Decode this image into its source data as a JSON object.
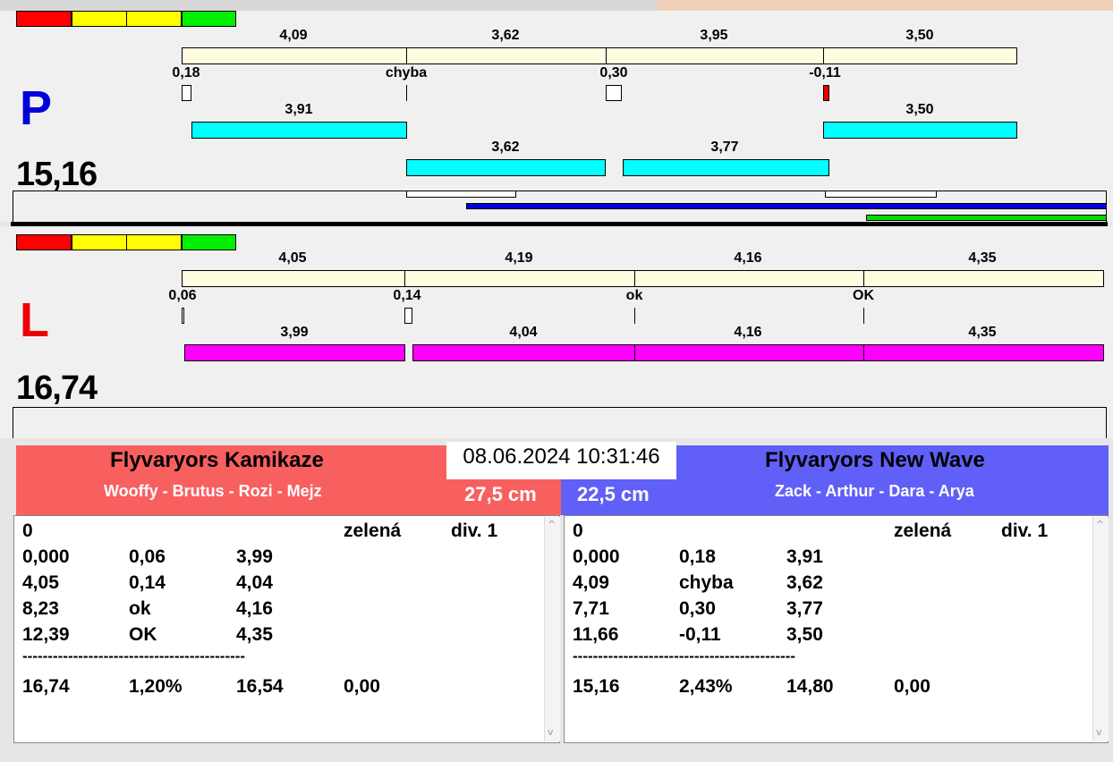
{
  "indicator_colors": [
    "#ff0000",
    "#ffff00",
    "#ffff00",
    "#00ee00"
  ],
  "lane_p": {
    "letter": "P",
    "letter_color": "#0000dd",
    "time": "15,16",
    "top_labels": [
      "4,09",
      "3,62",
      "3,95",
      "3,50"
    ],
    "mid_labels": [
      "0,18",
      "chyba",
      "0,30",
      "-0,11"
    ],
    "cyan_row1_labels": [
      "3,91",
      "3,50"
    ],
    "cyan_row2_labels": [
      "3,62",
      "3,77"
    ]
  },
  "lane_l": {
    "letter": "L",
    "letter_color": "#ee0000",
    "time": "16,74",
    "top_labels": [
      "4,05",
      "4,19",
      "4,16",
      "4,35"
    ],
    "mid_labels": [
      "0,06",
      "0,14",
      "ok",
      "OK"
    ],
    "mag_labels": [
      "3,99",
      "4,04",
      "4,16",
      "4,35"
    ]
  },
  "datetime": "08.06.2024 10:31:46",
  "left_team": {
    "name": "Flyvaryors Kamikaze",
    "members": "Wooffy - Brutus - Rozi - Mejz",
    "distance": "27,5 cm",
    "bg": "#f86060",
    "header": [
      "0",
      "zelená",
      "div. 1"
    ],
    "rows": [
      [
        "0,000",
        "0,06",
        "3,99"
      ],
      [
        "4,05",
        "0,14",
        "4,04"
      ],
      [
        "8,23",
        "ok",
        "4,16"
      ],
      [
        "12,39",
        "OK",
        "4,35"
      ]
    ],
    "separator": "--------------------------------------------",
    "totals": [
      "16,74",
      "1,20%",
      "16,54",
      "0,00"
    ]
  },
  "right_team": {
    "name": "Flyvaryors New Wave",
    "members": "Zack - Arthur - Dara - Arya",
    "distance": "22,5 cm",
    "bg": "#6060f8",
    "header": [
      "0",
      "zelená",
      "div. 1"
    ],
    "rows": [
      [
        "0,000",
        "0,18",
        "3,91"
      ],
      [
        "4,09",
        "chyba",
        "3,62"
      ],
      [
        "7,71",
        "0,30",
        "3,77"
      ],
      [
        "11,66",
        "-0,11",
        "3,50"
      ]
    ],
    "separator": "--------------------------------------------",
    "totals": [
      "15,16",
      "2,43%",
      "14,80",
      "0,00"
    ]
  }
}
